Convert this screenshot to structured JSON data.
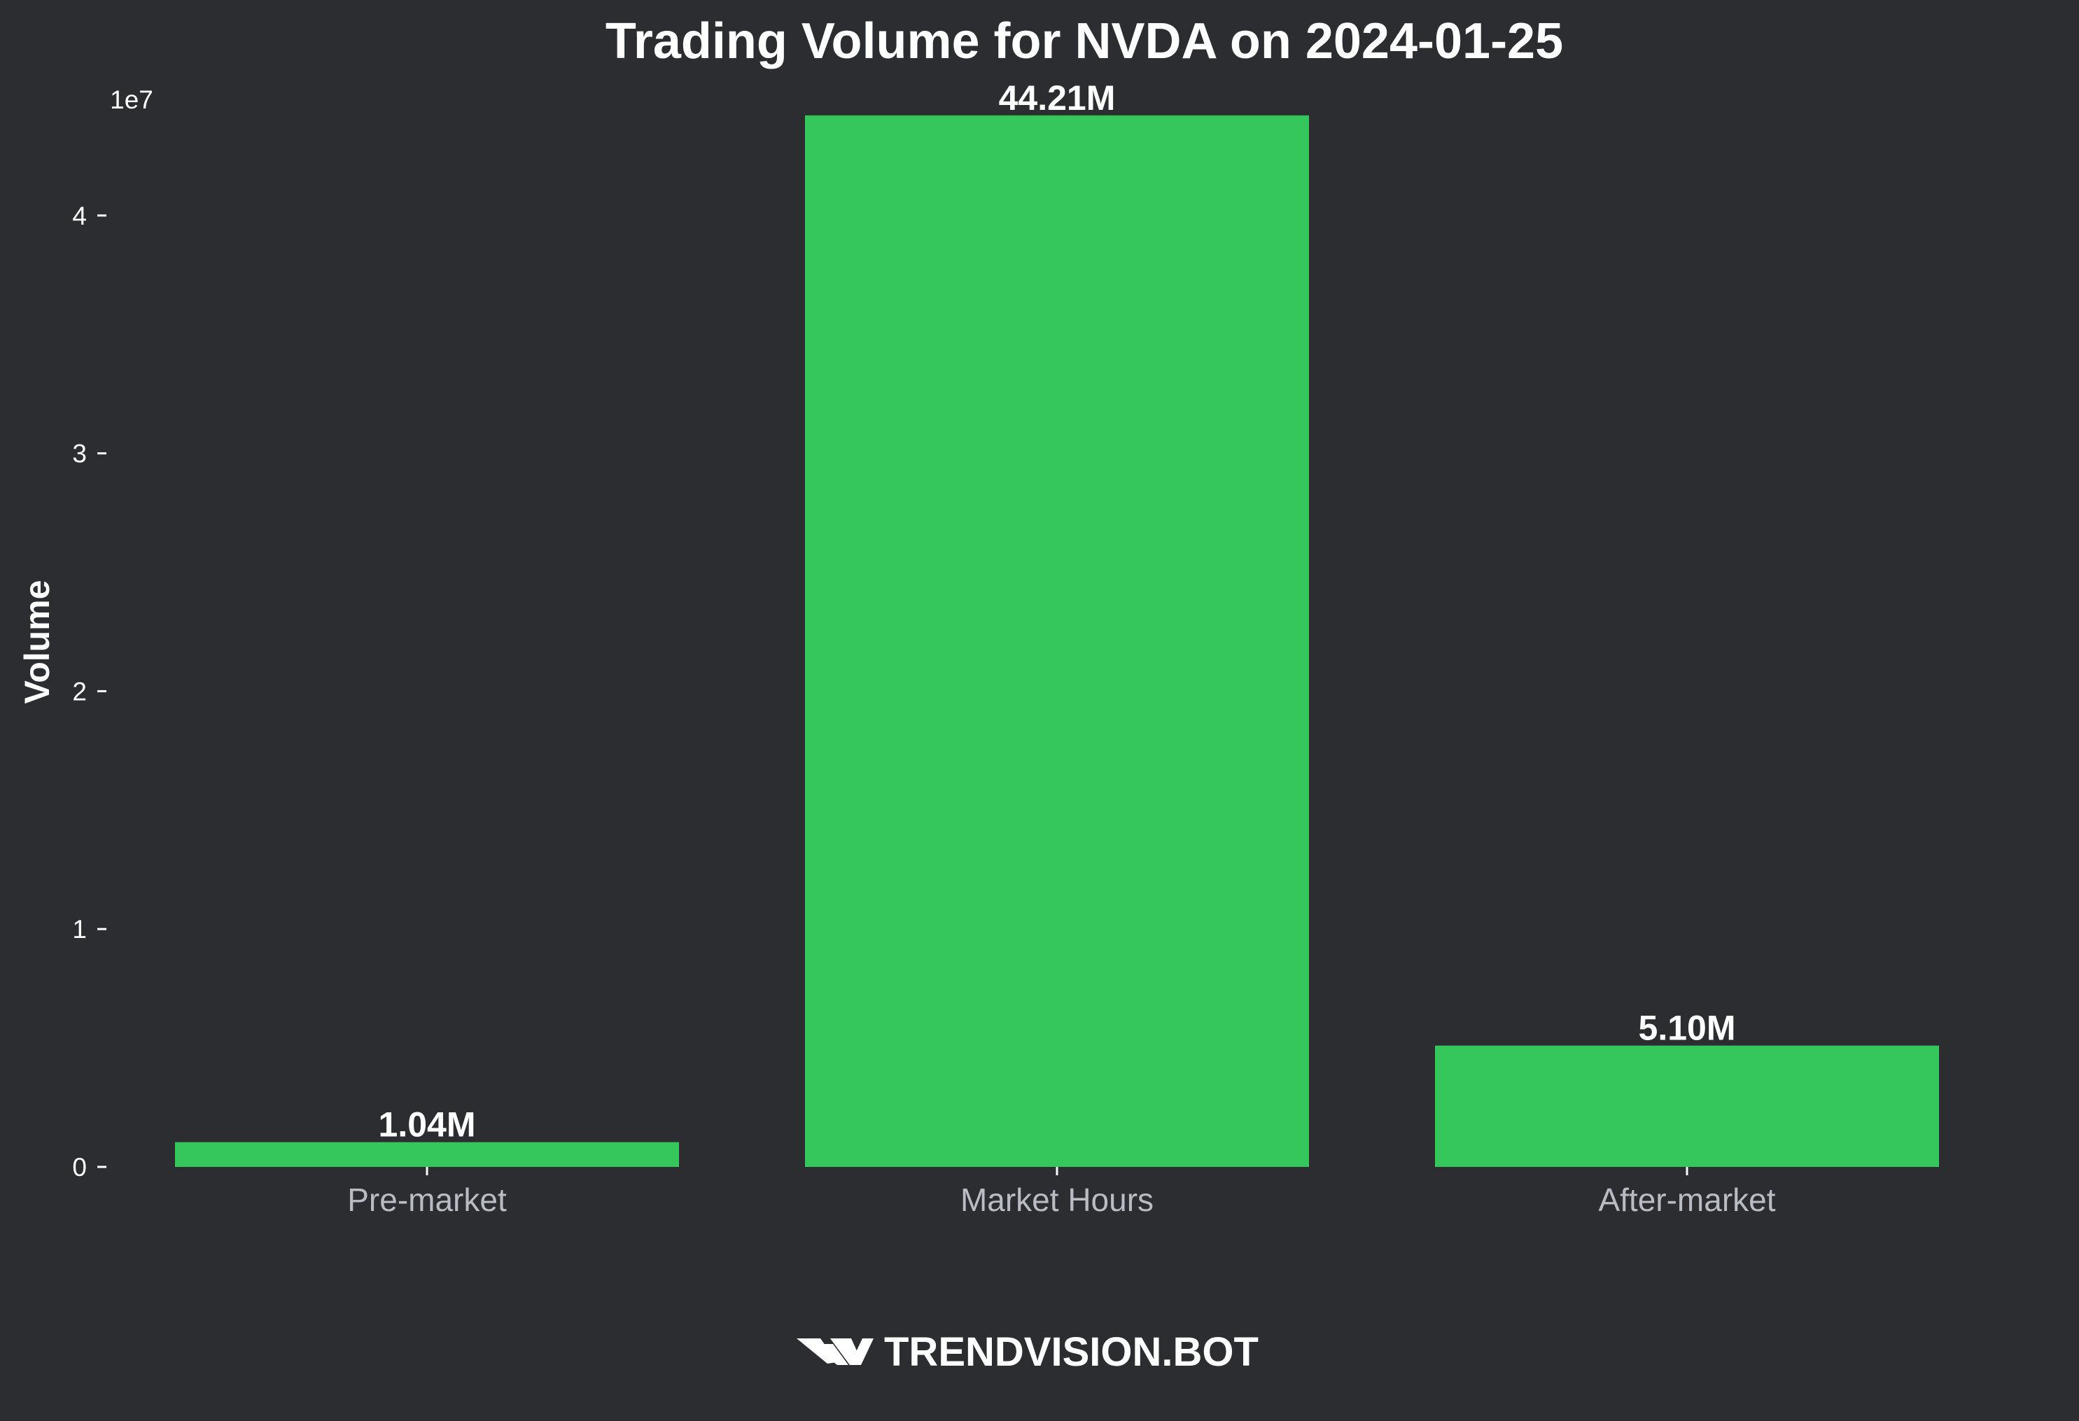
{
  "chart_data": {
    "type": "bar",
    "title": "Trading Volume for NVDA on 2024-01-25",
    "xlabel": "",
    "ylabel": "Volume",
    "categories": [
      "Pre-market",
      "Market Hours",
      "After-market"
    ],
    "values": [
      1040000,
      44210000,
      5100000
    ],
    "data_labels": [
      "1.04M",
      "44.21M",
      "5.10M"
    ],
    "ylim": [
      0,
      46500000
    ],
    "yticks": [
      0,
      10000000,
      20000000,
      30000000,
      40000000
    ],
    "ytick_labels": [
      "0",
      "1",
      "2",
      "3",
      "4"
    ],
    "y_offset_label": "1e7",
    "grid": false,
    "bar_color": "#36c75c",
    "background_color": "#2b2d31"
  },
  "brand": {
    "name": "TRENDVISION.BOT",
    "icon": "trendvision-logo-icon"
  }
}
